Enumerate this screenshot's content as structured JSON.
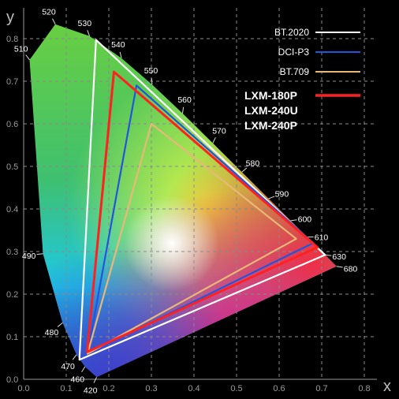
{
  "chart_data": {
    "type": "scatter",
    "xlabel": "x",
    "ylabel": "y",
    "xlim": [
      0.0,
      0.85
    ],
    "ylim": [
      0.0,
      0.85
    ],
    "xticks": [
      "0.0",
      "0.1",
      "0.2",
      "0.3",
      "0.4",
      "0.5",
      "0.6",
      "0.7",
      "0.8"
    ],
    "yticks": [
      "0.0",
      "0.1",
      "0.2",
      "0.3",
      "0.4",
      "0.5",
      "0.6",
      "0.7",
      "0.8"
    ],
    "grid": true,
    "legend_position": "top-right",
    "locus": [
      {
        "nm": "420",
        "x": 0.1714,
        "y": 0.005
      },
      {
        "nm": "460",
        "x": 0.144,
        "y": 0.0297
      },
      {
        "nm": "470",
        "x": 0.1241,
        "y": 0.0578
      },
      {
        "nm": "480",
        "x": 0.0913,
        "y": 0.1327
      },
      {
        "nm": "490",
        "x": 0.0454,
        "y": 0.295
      },
      {
        "nm": "510",
        "x": 0.0139,
        "y": 0.7502
      },
      {
        "nm": "520",
        "x": 0.0743,
        "y": 0.8338
      },
      {
        "nm": "530",
        "x": 0.1547,
        "y": 0.8059
      },
      {
        "nm": "540",
        "x": 0.2296,
        "y": 0.7543
      },
      {
        "nm": "550",
        "x": 0.3016,
        "y": 0.6923
      },
      {
        "nm": "560",
        "x": 0.3731,
        "y": 0.6245
      },
      {
        "nm": "570",
        "x": 0.4441,
        "y": 0.5547
      },
      {
        "nm": "580",
        "x": 0.5125,
        "y": 0.4866
      },
      {
        "nm": "590",
        "x": 0.5752,
        "y": 0.4242
      },
      {
        "nm": "600",
        "x": 0.627,
        "y": 0.3725
      },
      {
        "nm": "610",
        "x": 0.6658,
        "y": 0.334
      },
      {
        "nm": "630",
        "x": 0.7079,
        "y": 0.292
      },
      {
        "nm": "680",
        "x": 0.7347,
        "y": 0.2653
      }
    ],
    "series": [
      {
        "name": "BT.2020",
        "color": "#ffffff",
        "points": [
          [
            0.708,
            0.292
          ],
          [
            0.17,
            0.797
          ],
          [
            0.131,
            0.046
          ]
        ]
      },
      {
        "name": "DCI-P3",
        "color": "#2255dd",
        "points": [
          [
            0.68,
            0.32
          ],
          [
            0.265,
            0.69
          ],
          [
            0.15,
            0.06
          ]
        ]
      },
      {
        "name": "BT.709",
        "color": "#e8b878",
        "points": [
          [
            0.64,
            0.33
          ],
          [
            0.3,
            0.6
          ],
          [
            0.15,
            0.06
          ]
        ]
      },
      {
        "name": "LXM-180P\nLXM-240U\nLXM-240P",
        "color": "#ff2020",
        "points": [
          [
            0.69,
            0.31
          ],
          [
            0.212,
            0.722
          ],
          [
            0.149,
            0.064
          ]
        ]
      }
    ]
  }
}
